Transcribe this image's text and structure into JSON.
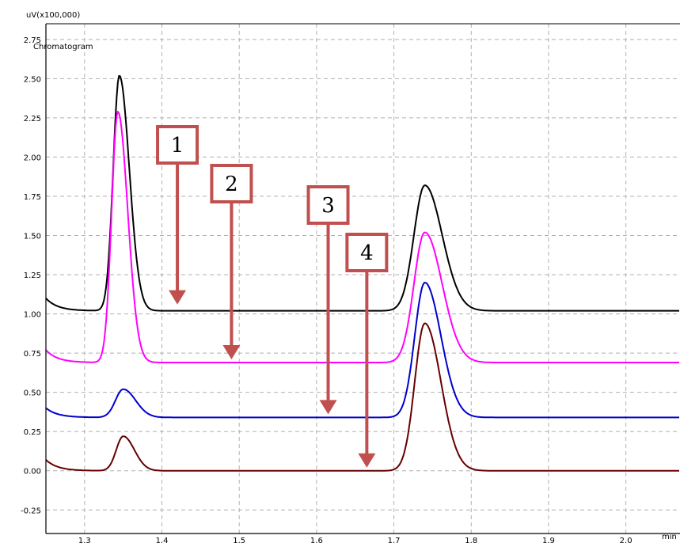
{
  "chart_data": {
    "type": "line",
    "title": "Chromatogram",
    "ylabel": "uV(x100,000)",
    "xlabel": "min",
    "xlim": [
      1.25,
      2.07
    ],
    "ylim": [
      -0.4,
      2.85
    ],
    "yticks": [
      -0.25,
      0.0,
      0.25,
      0.5,
      0.75,
      1.0,
      1.25,
      1.5,
      1.75,
      2.0,
      2.25,
      2.5,
      2.75
    ],
    "ytick_labels": [
      "-0.25",
      "0.00",
      "0.25",
      "0.50",
      "0.75",
      "1.00",
      "1.25",
      "1.50",
      "1.75",
      "2.00",
      "2.25",
      "2.50",
      "2.75"
    ],
    "xticks": [
      1.3,
      1.4,
      1.5,
      1.6,
      1.7,
      1.8,
      1.9,
      2.0
    ],
    "xtick_labels": [
      "1.3",
      "1.4",
      "1.5",
      "1.6",
      "1.7",
      "1.8",
      "1.9",
      "2.0"
    ],
    "grid": true,
    "series": [
      {
        "color": "#000000",
        "baseline": 1.02,
        "start": 1.1,
        "peaks": [
          {
            "x": 1.345,
            "h": 1.5,
            "w": 0.008
          },
          {
            "x": 1.74,
            "h": 0.8,
            "w": 0.014
          }
        ]
      },
      {
        "color": "#ff00ff",
        "baseline": 0.69,
        "start": 0.77,
        "peaks": [
          {
            "x": 1.343,
            "h": 1.6,
            "w": 0.008
          },
          {
            "x": 1.74,
            "h": 0.83,
            "w": 0.014
          }
        ]
      },
      {
        "color": "#0000cc",
        "baseline": 0.34,
        "start": 0.4,
        "peaks": [
          {
            "x": 1.35,
            "h": 0.18,
            "w": 0.01
          },
          {
            "x": 1.74,
            "h": 0.86,
            "w": 0.013
          }
        ]
      },
      {
        "color": "#660000",
        "baseline": 0.0,
        "start": 0.07,
        "peaks": [
          {
            "x": 1.35,
            "h": 0.22,
            "w": 0.009
          },
          {
            "x": 1.74,
            "h": 0.94,
            "w": 0.013
          }
        ]
      }
    ],
    "annotations": [
      {
        "label": "1",
        "x": 1.42,
        "y": 1.05
      },
      {
        "label": "2",
        "x": 1.49,
        "y": 0.7
      },
      {
        "label": "3",
        "x": 1.615,
        "y": 0.35
      },
      {
        "label": "4",
        "x": 1.665,
        "y": 0.01
      }
    ],
    "colors": {
      "grid": "#b0b0b0",
      "annotation": "#c0504d"
    }
  }
}
